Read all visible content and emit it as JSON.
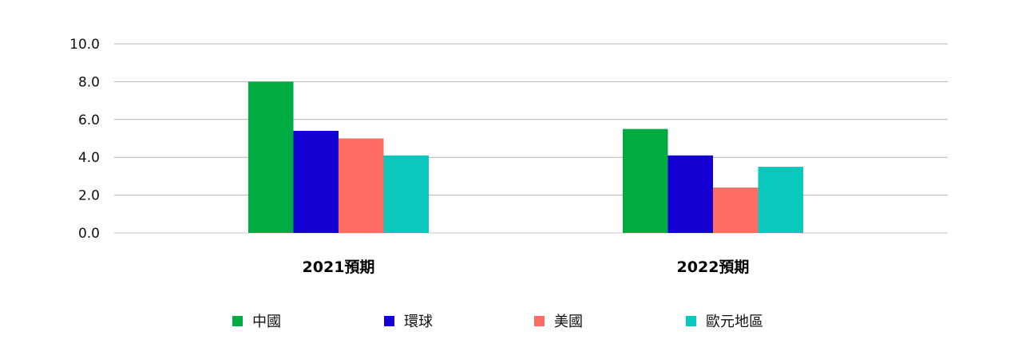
{
  "chart_data": {
    "type": "bar",
    "categories": [
      "2021預期",
      "2022預期"
    ],
    "series": [
      {
        "name": "中國",
        "color": "#00AC41",
        "values": [
          8.0,
          5.5
        ]
      },
      {
        "name": "環球",
        "color": "#1500D3",
        "values": [
          5.4,
          4.1
        ]
      },
      {
        "name": "美國",
        "color": "#FF6C62",
        "values": [
          5.0,
          2.4
        ]
      },
      {
        "name": "歐元地區",
        "color": "#0BC8BC",
        "values": [
          4.1,
          3.5
        ]
      }
    ],
    "yticks": [
      "0.0",
      "2.0",
      "4.0",
      "6.0",
      "8.0",
      "10.0"
    ],
    "ylim": [
      0,
      10
    ],
    "grid": true,
    "legend_position": "bottom"
  }
}
